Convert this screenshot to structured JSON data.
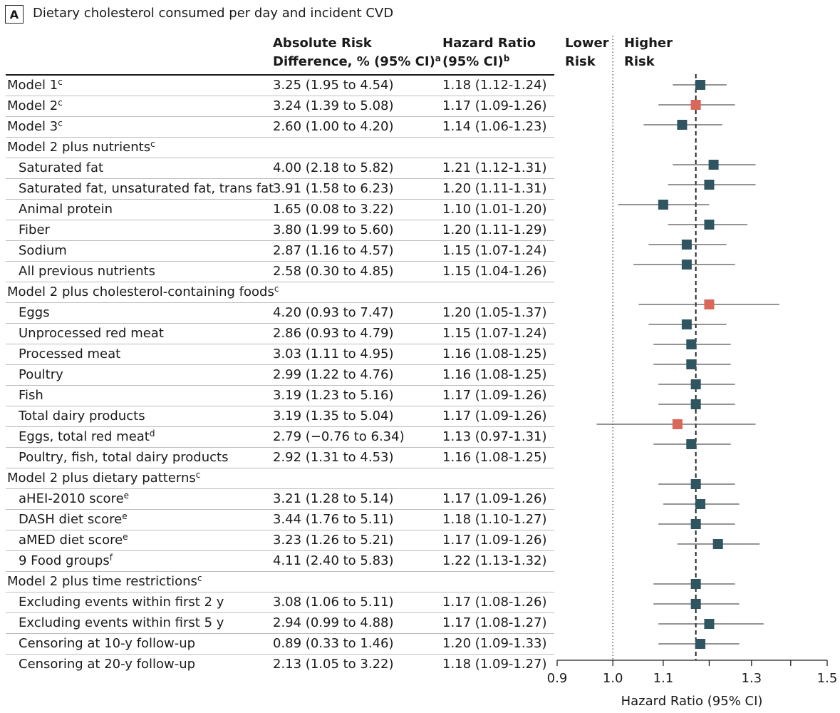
{
  "panel": {
    "letter": "A",
    "title": "Dietary cholesterol consumed per day and incident CVD"
  },
  "headers": {
    "ard_line1": "Absolute Risk",
    "ard_line2": "Difference, % (95% CI)",
    "ard_sup": "a",
    "hr_line1": "Hazard Ratio",
    "hr_line2": "(95% CI)",
    "hr_sup": "b",
    "lower_line1": "Lower",
    "lower_line2": "Risk",
    "higher_line1": "Higher",
    "higher_line2": "Risk"
  },
  "colors": {
    "marker_default": "#2e5560",
    "marker_highlight": "#d9675a",
    "ci_line": "#555555",
    "reference_line": "#222222"
  },
  "rows": [
    {
      "label": "Model 1",
      "sup": "c",
      "indent": false,
      "ard": "3.25 (1.95 to 4.54)",
      "hr_text": "1.18 (1.12-1.24)",
      "hr": 1.18,
      "lo": 1.12,
      "hi": 1.24,
      "highlight": false
    },
    {
      "label": "Model 2",
      "sup": "c",
      "indent": false,
      "ard": "3.24 (1.39 to 5.08)",
      "hr_text": "1.17 (1.09-1.26)",
      "hr": 1.17,
      "lo": 1.09,
      "hi": 1.26,
      "highlight": true
    },
    {
      "label": "Model 3",
      "sup": "c",
      "indent": false,
      "ard": "2.60 (1.00 to 4.20)",
      "hr_text": "1.14 (1.06-1.23)",
      "hr": 1.14,
      "lo": 1.06,
      "hi": 1.23,
      "highlight": false
    },
    {
      "label": "Model 2 plus nutrients",
      "sup": "c",
      "indent": false,
      "ard": "",
      "hr_text": "",
      "hr": null,
      "lo": null,
      "hi": null,
      "highlight": false
    },
    {
      "label": "Saturated fat",
      "sup": "",
      "indent": true,
      "ard": "4.00 (2.18 to 5.82)",
      "hr_text": "1.21 (1.12-1.31)",
      "hr": 1.21,
      "lo": 1.12,
      "hi": 1.31,
      "highlight": false
    },
    {
      "label": "Saturated fat, unsaturated fat, trans fat",
      "sup": "",
      "indent": true,
      "ard": "3.91 (1.58 to 6.23)",
      "hr_text": "1.20 (1.11-1.31)",
      "hr": 1.2,
      "lo": 1.11,
      "hi": 1.31,
      "highlight": false
    },
    {
      "label": "Animal protein",
      "sup": "",
      "indent": true,
      "ard": "1.65 (0.08 to 3.22)",
      "hr_text": "1.10 (1.01-1.20)",
      "hr": 1.1,
      "lo": 1.01,
      "hi": 1.2,
      "highlight": false
    },
    {
      "label": "Fiber",
      "sup": "",
      "indent": true,
      "ard": "3.80 (1.99 to 5.60)",
      "hr_text": "1.20 (1.11-1.29)",
      "hr": 1.2,
      "lo": 1.11,
      "hi": 1.29,
      "highlight": false
    },
    {
      "label": "Sodium",
      "sup": "",
      "indent": true,
      "ard": "2.87 (1.16 to 4.57)",
      "hr_text": "1.15 (1.07-1.24)",
      "hr": 1.15,
      "lo": 1.07,
      "hi": 1.24,
      "highlight": false
    },
    {
      "label": "All previous nutrients",
      "sup": "",
      "indent": true,
      "ard": "2.58 (0.30 to 4.85)",
      "hr_text": "1.15 (1.04-1.26)",
      "hr": 1.15,
      "lo": 1.04,
      "hi": 1.26,
      "highlight": false
    },
    {
      "label": "Model 2 plus cholesterol-containing foods",
      "sup": "c",
      "indent": false,
      "ard": "",
      "hr_text": "",
      "hr": null,
      "lo": null,
      "hi": null,
      "highlight": false
    },
    {
      "label": "Eggs",
      "sup": "",
      "indent": true,
      "ard": "4.20 (0.93 to 7.47)",
      "hr_text": "1.20 (1.05-1.37)",
      "hr": 1.2,
      "lo": 1.05,
      "hi": 1.37,
      "highlight": true
    },
    {
      "label": "Unprocessed red meat",
      "sup": "",
      "indent": true,
      "ard": "2.86 (0.93 to 4.79)",
      "hr_text": "1.15 (1.07-1.24)",
      "hr": 1.15,
      "lo": 1.07,
      "hi": 1.24,
      "highlight": false
    },
    {
      "label": "Processed meat",
      "sup": "",
      "indent": true,
      "ard": "3.03 (1.11 to 4.95)",
      "hr_text": "1.16 (1.08-1.25)",
      "hr": 1.16,
      "lo": 1.08,
      "hi": 1.25,
      "highlight": false
    },
    {
      "label": "Poultry",
      "sup": "",
      "indent": true,
      "ard": "2.99 (1.22 to 4.76)",
      "hr_text": "1.16 (1.08-1.25)",
      "hr": 1.16,
      "lo": 1.08,
      "hi": 1.25,
      "highlight": false
    },
    {
      "label": "Fish",
      "sup": "",
      "indent": true,
      "ard": "3.19 (1.23 to 5.16)",
      "hr_text": "1.17 (1.09-1.26)",
      "hr": 1.17,
      "lo": 1.09,
      "hi": 1.26,
      "highlight": false
    },
    {
      "label": "Total dairy products",
      "sup": "",
      "indent": true,
      "ard": "3.19 (1.35 to 5.04)",
      "hr_text": "1.17 (1.09-1.26)",
      "hr": 1.17,
      "lo": 1.09,
      "hi": 1.26,
      "highlight": false
    },
    {
      "label": "Eggs, total red meat",
      "sup": "d",
      "indent": true,
      "ard": "2.79 (−0.76 to 6.34)",
      "hr_text": "1.13 (0.97-1.31)",
      "hr": 1.13,
      "lo": 0.97,
      "hi": 1.31,
      "highlight": true
    },
    {
      "label": "Poultry, fish, total dairy products",
      "sup": "",
      "indent": true,
      "ard": "2.92 (1.31 to 4.53)",
      "hr_text": "1.16 (1.08-1.25)",
      "hr": 1.16,
      "lo": 1.08,
      "hi": 1.25,
      "highlight": false
    },
    {
      "label": "Model 2 plus dietary patterns",
      "sup": "c",
      "indent": false,
      "ard": "",
      "hr_text": "",
      "hr": null,
      "lo": null,
      "hi": null,
      "highlight": false
    },
    {
      "label": "aHEI-2010 score",
      "sup": "e",
      "indent": true,
      "ard": "3.21 (1.28 to 5.14)",
      "hr_text": "1.17 (1.09-1.26)",
      "hr": 1.17,
      "lo": 1.09,
      "hi": 1.26,
      "highlight": false
    },
    {
      "label": "DASH diet score",
      "sup": "e",
      "indent": true,
      "ard": "3.44 (1.76 to 5.11)",
      "hr_text": "1.18 (1.10-1.27)",
      "hr": 1.18,
      "lo": 1.1,
      "hi": 1.27,
      "highlight": false
    },
    {
      "label": "aMED diet score",
      "sup": "e",
      "indent": true,
      "ard": "3.23 (1.26 to 5.21)",
      "hr_text": "1.17 (1.09-1.26)",
      "hr": 1.17,
      "lo": 1.09,
      "hi": 1.26,
      "highlight": false
    },
    {
      "label": "9 Food groups",
      "sup": "f",
      "indent": true,
      "ard": "4.11 (2.40 to 5.83)",
      "hr_text": "1.22 (1.13-1.32)",
      "hr": 1.22,
      "lo": 1.13,
      "hi": 1.32,
      "highlight": false
    },
    {
      "label": "Model 2 plus time restrictions",
      "sup": "c",
      "indent": false,
      "ard": "",
      "hr_text": "",
      "hr": null,
      "lo": null,
      "hi": null,
      "highlight": false
    },
    {
      "label": "Excluding events within first 2 y",
      "sup": "",
      "indent": true,
      "ard": "3.08 (1.06 to 5.11)",
      "hr_text": "1.17 (1.08-1.26)",
      "hr": 1.17,
      "lo": 1.08,
      "hi": 1.26,
      "highlight": false
    },
    {
      "label": "Excluding events within first 5 y",
      "sup": "",
      "indent": true,
      "ard": "2.94 (0.99 to 4.88)",
      "hr_text": "1.17 (1.08-1.27)",
      "hr": 1.17,
      "lo": 1.08,
      "hi": 1.27,
      "highlight": false
    },
    {
      "label": "Censoring at 10-y follow-up",
      "sup": "",
      "indent": true,
      "ard": "0.89 (0.33 to 1.46)",
      "hr_text": "1.20 (1.09-1.33)",
      "hr": 1.2,
      "lo": 1.09,
      "hi": 1.33,
      "highlight": false
    },
    {
      "label": "Censoring at 20-y follow-up",
      "sup": "",
      "indent": true,
      "ard": "2.13 (1.05 to 3.22)",
      "hr_text": "1.18 (1.09-1.27)",
      "hr": 1.18,
      "lo": 1.09,
      "hi": 1.27,
      "highlight": false
    }
  ],
  "chart_data": {
    "type": "forest",
    "title": "Dietary cholesterol consumed per day and incident CVD",
    "xlabel": "Hazard Ratio (95% CI)",
    "xlim": [
      0.9,
      1.5
    ],
    "xticks": [
      0.9,
      1.0,
      1.1,
      1.3,
      1.5
    ],
    "xtick_labels": [
      "0.9",
      "1.0",
      "1.1",
      "1.3",
      "1.5"
    ],
    "log_scale": true,
    "null_line": 1.0,
    "reference_line": 1.17,
    "grid": false
  }
}
